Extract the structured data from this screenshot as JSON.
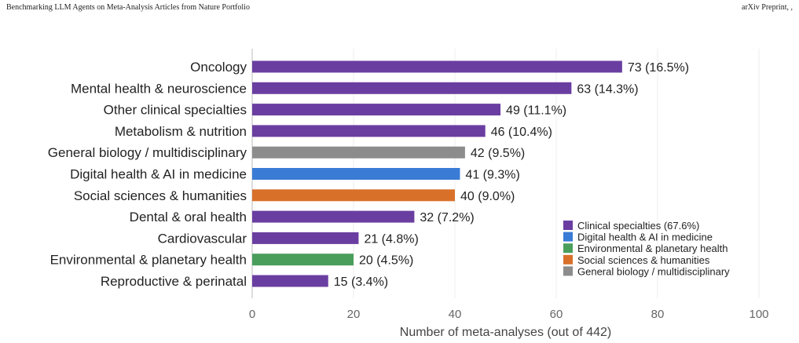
{
  "header": {
    "left": "Benchmarking LLM Agents on Meta-Analysis Articles from Nature Portfolio",
    "right": "arXiv Preprint, ,"
  },
  "colors": {
    "clinical": "#6a3ea1",
    "digital": "#3a7bd5",
    "environmental": "#4a9e5c",
    "social": "#d9702a",
    "general": "#8c8c8c"
  },
  "chart_data": {
    "type": "bar",
    "orientation": "horizontal",
    "categories": [
      "Oncology",
      "Mental health & neuroscience",
      "Other clinical specialties",
      "Metabolism & nutrition",
      "General biology / multidisciplinary",
      "Digital health & AI in medicine",
      "Social sciences & humanities",
      "Dental & oral health",
      "Cardiovascular",
      "Environmental & planetary health",
      "Reproductive & perinatal"
    ],
    "values": [
      73,
      63,
      49,
      46,
      42,
      41,
      40,
      32,
      21,
      20,
      15
    ],
    "data_labels": [
      "73  (16.5%)",
      "63  (14.3%)",
      "49  (11.1%)",
      "46  (10.4%)",
      "42  (9.5%)",
      "41  (9.3%)",
      "40  (9.0%)",
      "32  (7.2%)",
      "21  (4.8%)",
      "20  (4.5%)",
      "15  (3.4%)"
    ],
    "groups": [
      "clinical",
      "clinical",
      "clinical",
      "clinical",
      "general",
      "digital",
      "social",
      "clinical",
      "clinical",
      "environmental",
      "clinical"
    ],
    "xlabel": "Number of meta-analyses (out of 442)",
    "xlim": [
      0,
      100
    ],
    "xticks": [
      0,
      20,
      40,
      60,
      80,
      100
    ],
    "grid": true,
    "legend_position": "bottom-right",
    "legend": [
      {
        "group": "clinical",
        "label": "Clinical specialties (67.6%)"
      },
      {
        "group": "digital",
        "label": "Digital health & AI in medicine"
      },
      {
        "group": "environmental",
        "label": "Environmental & planetary health"
      },
      {
        "group": "social",
        "label": "Social sciences & humanities"
      },
      {
        "group": "general",
        "label": "General biology / multidisciplinary"
      }
    ]
  }
}
